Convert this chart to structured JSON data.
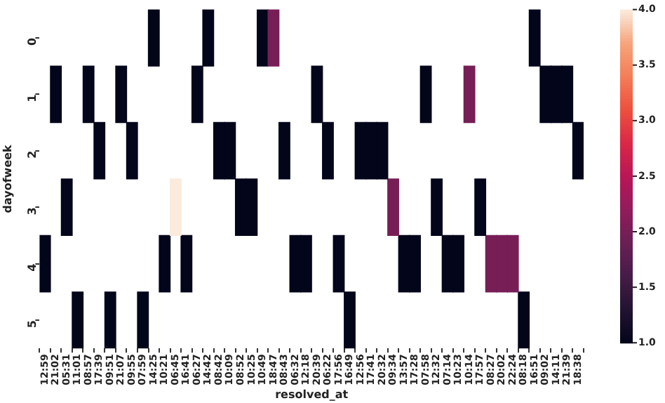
{
  "chart_data": {
    "type": "heatmap",
    "xlabel": "resolved_at",
    "ylabel": "dayofweek",
    "categories": [
      "12:59",
      "21:02",
      "05:31",
      "11:01",
      "08:57",
      "17:39",
      "09:51",
      "21:07",
      "09:55",
      "07:59",
      "14:25",
      "10:21",
      "06:45",
      "16:41",
      "06:27",
      "14:42",
      "08:42",
      "10:09",
      "08:52",
      "10:25",
      "10:49",
      "18:47",
      "08:43",
      "06:32",
      "12:18",
      "20:39",
      "06:22",
      "17:56",
      "16:49",
      "12:56",
      "17:41",
      "20:32",
      "09:34",
      "13:57",
      "17:28",
      "07:58",
      "12:32",
      "07:14",
      "10:23",
      "10:14",
      "17:57",
      "08:27",
      "20:02",
      "22:24",
      "08:18",
      "16:51",
      "09:02",
      "14:11",
      "21:39",
      "18:38"
    ],
    "y_categories": [
      "0",
      "1",
      "2",
      "3",
      "4",
      "5"
    ],
    "cells": [
      [
        null,
        null,
        null,
        null,
        null,
        null,
        null,
        null,
        null,
        null,
        1,
        null,
        null,
        null,
        null,
        1,
        null,
        null,
        null,
        null,
        1,
        2,
        null,
        null,
        null,
        null,
        null,
        null,
        null,
        null,
        null,
        null,
        null,
        null,
        null,
        null,
        null,
        null,
        null,
        null,
        null,
        null,
        null,
        null,
        null,
        1,
        null,
        null,
        null,
        null
      ],
      [
        null,
        1,
        null,
        null,
        1,
        null,
        null,
        1,
        null,
        null,
        null,
        null,
        null,
        null,
        1,
        null,
        null,
        null,
        null,
        null,
        null,
        null,
        null,
        null,
        null,
        1,
        null,
        null,
        null,
        null,
        null,
        null,
        null,
        null,
        null,
        1,
        null,
        null,
        null,
        2,
        null,
        null,
        null,
        null,
        null,
        null,
        1,
        1,
        1,
        null
      ],
      [
        null,
        null,
        null,
        null,
        null,
        1,
        null,
        null,
        1,
        null,
        null,
        null,
        null,
        null,
        null,
        null,
        1,
        1,
        null,
        null,
        null,
        null,
        1,
        null,
        null,
        null,
        1,
        null,
        null,
        1,
        1,
        1,
        null,
        null,
        null,
        null,
        null,
        null,
        null,
        null,
        null,
        null,
        null,
        null,
        null,
        null,
        null,
        null,
        null,
        1
      ],
      [
        null,
        null,
        1,
        null,
        null,
        null,
        null,
        null,
        null,
        null,
        null,
        null,
        4,
        null,
        null,
        null,
        null,
        null,
        1,
        1,
        null,
        null,
        null,
        null,
        null,
        null,
        null,
        null,
        null,
        null,
        null,
        null,
        2,
        null,
        null,
        null,
        1,
        null,
        null,
        null,
        1,
        null,
        null,
        null,
        null,
        null,
        null,
        null,
        null,
        null
      ],
      [
        1,
        null,
        null,
        null,
        null,
        null,
        null,
        null,
        null,
        null,
        null,
        1,
        null,
        1,
        null,
        null,
        null,
        null,
        null,
        null,
        null,
        null,
        null,
        1,
        1,
        null,
        null,
        1,
        null,
        null,
        null,
        null,
        null,
        1,
        1,
        null,
        null,
        1,
        1,
        null,
        null,
        2,
        2,
        2,
        null,
        null,
        null,
        null,
        null,
        null
      ],
      [
        null,
        null,
        null,
        1,
        null,
        null,
        1,
        null,
        null,
        1,
        null,
        null,
        null,
        null,
        null,
        null,
        null,
        null,
        null,
        null,
        null,
        null,
        null,
        null,
        null,
        null,
        null,
        null,
        1,
        null,
        null,
        null,
        null,
        null,
        null,
        null,
        null,
        null,
        null,
        null,
        null,
        null,
        null,
        null,
        1,
        null,
        null,
        null,
        null,
        null
      ]
    ],
    "clim": [
      1,
      4
    ],
    "cticks": [
      {
        "value": 1,
        "label": "1.0"
      },
      {
        "value": 1.5,
        "label": "1.5"
      },
      {
        "value": 2,
        "label": "2.0"
      },
      {
        "value": 2.5,
        "label": "2.5"
      },
      {
        "value": 3,
        "label": "3.0"
      },
      {
        "value": 3.5,
        "label": "3.5"
      },
      {
        "value": 4,
        "label": "4.0"
      }
    ]
  }
}
